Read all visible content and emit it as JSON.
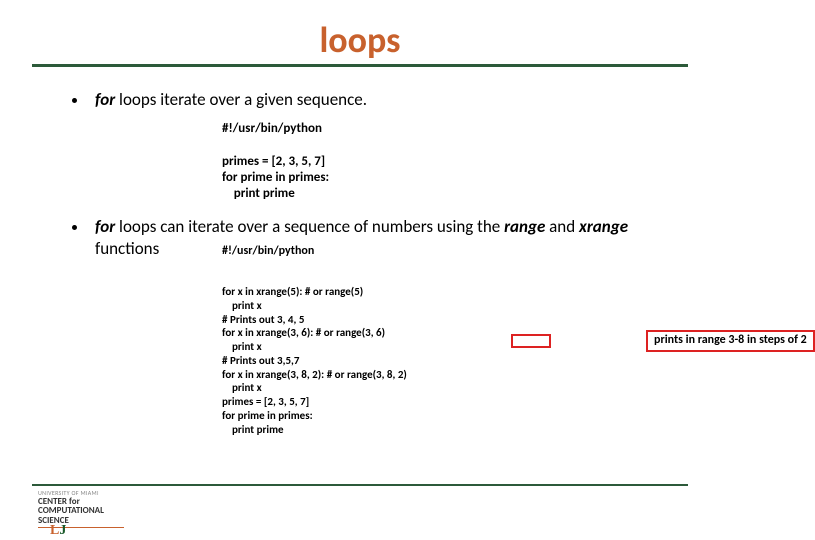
{
  "title": "loops",
  "bullet1_prefix": "for",
  "bullet1_rest": " loops iterate over a given sequence.",
  "code1": "#!/usr/bin/python\n\nprimes = [2, 3, 5, 7]\nfor prime in primes:\n    print prime",
  "bullet2_prefix": "for",
  "bullet2_mid": " loops can iterate over a sequence of numbers using the ",
  "bullet2_kw2": "range",
  "bullet2_mid2": " and ",
  "bullet2_kw3": "xrange",
  "bullet2_rest": " functions",
  "shebang2": "#!/usr/bin/python",
  "code2": "\nfor x in xrange(5): # or range(5)\n    print x\n# Prints out 3, 4, 5\nfor x in xrange(3, 6): # or range(3, 6)\n    print x\n# Prints out 3,5,7\nfor x in xrange(3, 8, 2): # or range(3, 8, 2)\n    print x\nprimes = [2, 3, 5, 7]\nfor prime in primes:\n    print prime",
  "annotation": "prints in range 3-8 in steps of 2",
  "footer_line1": "UNIVERSITY OF MIAMI",
  "footer_line2a": "CENTER for",
  "footer_line2b": "COMPUTATIONAL",
  "footer_line2c": "SCIENCE",
  "colors": {
    "title": "#c8612d",
    "rule": "#2c5a3a",
    "highlight": "#d22"
  }
}
